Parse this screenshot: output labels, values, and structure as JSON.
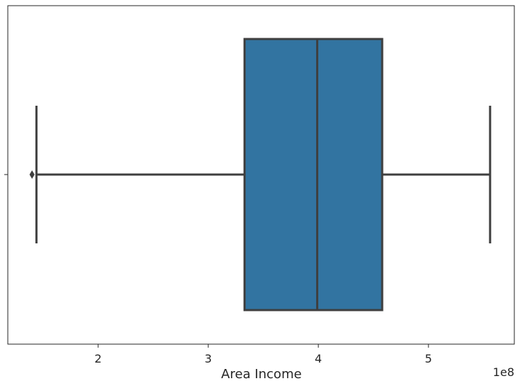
{
  "chart_data": {
    "type": "box",
    "orientation": "horizontal",
    "xlabel": "Area Income",
    "x_offset_label": "1e8",
    "xlim": [
      1.18,
      5.78
    ],
    "x_ticks": [
      2,
      3,
      4,
      5
    ],
    "x_tick_labels": [
      "2",
      "3",
      "4",
      "5"
    ],
    "box": {
      "whisker_low": 1.44,
      "q1": 3.33,
      "median": 3.99,
      "q3": 4.58,
      "whisker_high": 5.56,
      "outliers": [
        1.4
      ]
    },
    "colors": {
      "box_fill": "#3274a1",
      "line": "#3f3f3f",
      "frame": "#262626"
    },
    "grid": false
  }
}
